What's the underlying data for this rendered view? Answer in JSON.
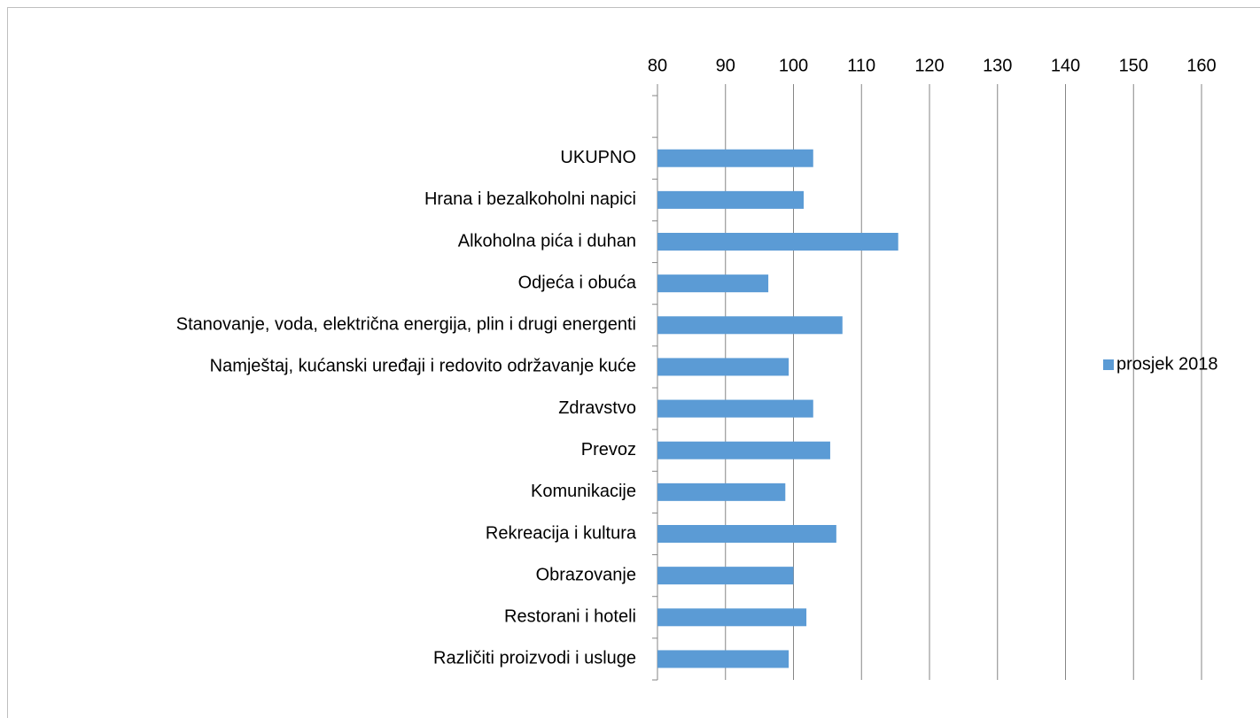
{
  "chart_data": {
    "type": "barh",
    "categories": [
      null,
      "UKUPNO",
      "Hrana i bezalkoholni napici",
      "Alkoholna pića i duhan",
      "Odjeća i obuća",
      "Stanovanje, voda, električna energija, plin i drugi energenti",
      "Namještaj, kućanski uređaji i redovito održavanje kuće",
      "Zdravstvo",
      "Prevoz",
      "Komunikacije",
      "Rekreacija i kultura",
      "Obrazovanje",
      "Restorani i hoteli",
      "Različiti proizvodi i usluge"
    ],
    "series": [
      {
        "name": "prosjek 2018",
        "color": "#5b9bd5",
        "values": [
          null,
          102.9,
          101.5,
          115.4,
          96.3,
          107.2,
          99.3,
          102.9,
          105.4,
          98.8,
          106.3,
          100,
          101.9,
          99.3
        ]
      }
    ],
    "xlim": [
      80,
      160
    ],
    "xticks": [
      80,
      90,
      100,
      110,
      120,
      130,
      140,
      150,
      160
    ],
    "grid": true,
    "legend": "right"
  }
}
